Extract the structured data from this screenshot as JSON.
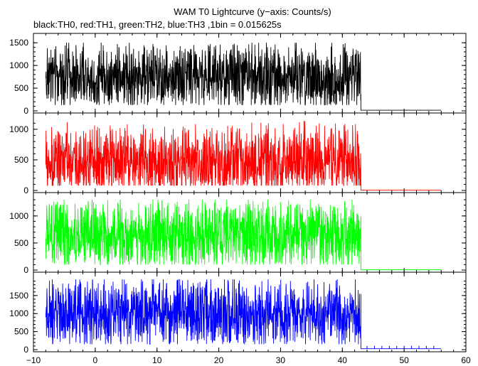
{
  "chart_data": {
    "type": "line",
    "title": "WAM T0 Lightcurve (y−axis: Counts/s)",
    "subtitle": "black:TH0, red:TH1, green:TH2, blue:TH3 ,1bin = 0.015625s",
    "xlim": [
      -10,
      60
    ],
    "x_ticks": [
      -10,
      0,
      10,
      20,
      30,
      40,
      50,
      60
    ],
    "x_tick_labels": [
      "−10",
      "0",
      "10",
      "20",
      "30",
      "40",
      "50",
      "60"
    ],
    "grid": false,
    "panels": [
      {
        "series_name": "TH0",
        "color": "#000000",
        "ylim": [
          0,
          1550
        ],
        "y_ticks": [
          0,
          500,
          1000,
          1500
        ],
        "y_tick_labels": [
          "0",
          "500",
          "1000",
          "1500"
        ],
        "data_start": -8,
        "data_end": 43,
        "active_mean": 780,
        "active_low": 130,
        "active_high": 1500,
        "after_end": 56,
        "after_level": 15
      },
      {
        "series_name": "TH1",
        "color": "#ff0000",
        "ylim": [
          0,
          1150
        ],
        "y_ticks": [
          0,
          500,
          1000
        ],
        "y_tick_labels": [
          "0",
          "500",
          "1000"
        ],
        "data_start": -8,
        "data_end": 43,
        "active_mean": 480,
        "active_low": 80,
        "active_high": 1150,
        "after_end": 56,
        "after_level": 5
      },
      {
        "series_name": "TH2",
        "color": "#00ff00",
        "ylim": [
          0,
          1300
        ],
        "y_ticks": [
          0,
          500,
          1000
        ],
        "y_tick_labels": [
          "0",
          "500",
          "1000"
        ],
        "data_start": -8,
        "data_end": 43,
        "active_mean": 650,
        "active_low": 100,
        "active_high": 1300,
        "after_end": 56,
        "after_level": 5
      },
      {
        "series_name": "TH3",
        "color": "#0000ff",
        "ylim": [
          0,
          1950
        ],
        "y_ticks": [
          0,
          500,
          1000,
          1500
        ],
        "y_tick_labels": [
          "0",
          "500",
          "1000",
          "1500"
        ],
        "data_start": -8,
        "data_end": 43,
        "active_mean": 1000,
        "active_low": 150,
        "active_high": 1950,
        "after_end": 56,
        "after_level": 25
      }
    ]
  }
}
